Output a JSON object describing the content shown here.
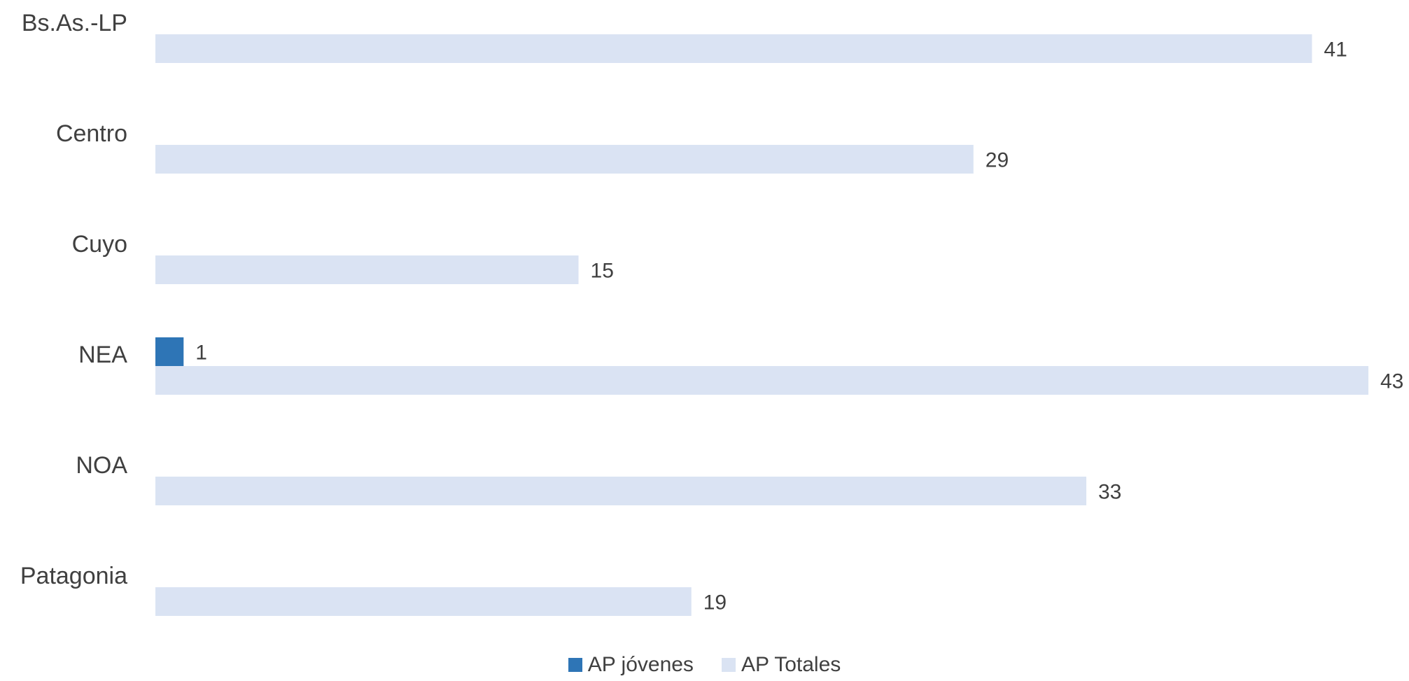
{
  "chart_data": {
    "type": "bar",
    "orientation": "horizontal",
    "categories": [
      "Bs.As.-LP",
      "Centro",
      "Cuyo",
      "NEA",
      "NOA",
      "Patagonia"
    ],
    "series": [
      {
        "name": "AP jóvenes",
        "color": "#2E75B6",
        "values": [
          null,
          null,
          null,
          1,
          null,
          null
        ]
      },
      {
        "name": "AP Totales",
        "color": "#DAE3F3",
        "values": [
          41,
          29,
          15,
          43,
          33,
          19
        ]
      }
    ],
    "title": "",
    "xlabel": "",
    "ylabel": "",
    "xlim": [
      0,
      43
    ],
    "grid": false,
    "legend": "bottom",
    "data_labels": true
  }
}
